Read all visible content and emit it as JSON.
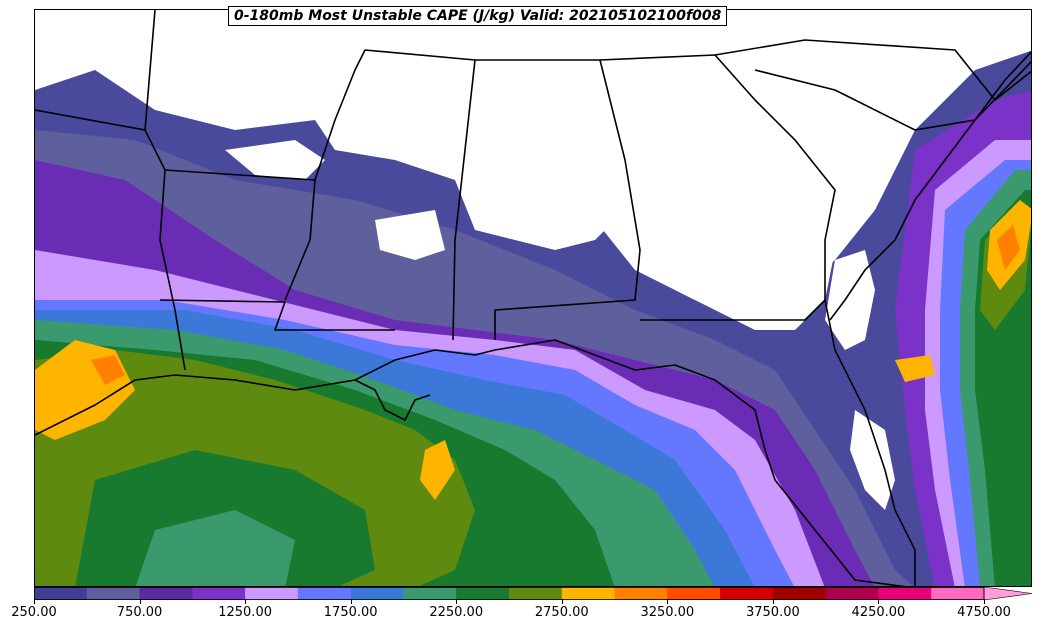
{
  "title": "0-180mb Most Unstable CAPE (J/kg) Valid: 202105102100f008",
  "colorbar": {
    "colors": [
      "#3f3f96",
      "#5f5f9e",
      "#5a2aa0",
      "#7a32c8",
      "#cc99ff",
      "#6478ff",
      "#3c78d8",
      "#3a9a6e",
      "#187a2e",
      "#5f8a10",
      "#ffb400",
      "#ff8000",
      "#ff4a00",
      "#d20000",
      "#a00000",
      "#b0004c",
      "#e8007a",
      "#ff69c0"
    ],
    "extend_color": "#ff9ed8",
    "labels": [
      "250.00",
      "750.00",
      "1250.00",
      "1750.00",
      "2250.00",
      "2750.00",
      "3250.00",
      "3750.00",
      "4250.00",
      "4750.00"
    ]
  }
}
